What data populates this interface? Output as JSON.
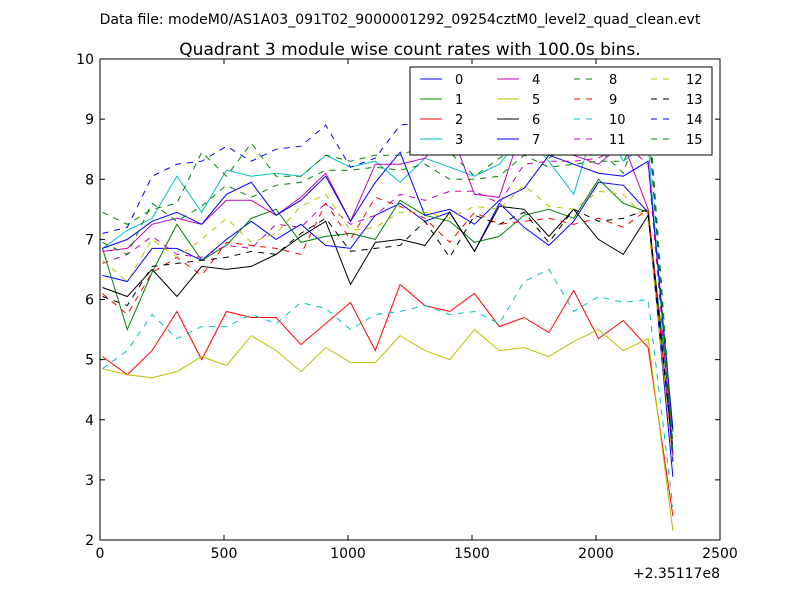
{
  "chart_data": {
    "type": "line",
    "suptitle": "Data file: modeM0/AS1A03_091T02_9000001292_09254cztM0_level2_quad_clean.evt",
    "title": "Quadrant 3 module wise count rates with 100.0s bins.",
    "xlabel": "",
    "ylabel": "",
    "offset_label": "+2.35117e8",
    "xlim": [
      0,
      2500
    ],
    "ylim": [
      2,
      10
    ],
    "xticks": [
      0,
      500,
      1000,
      1500,
      2000,
      2500
    ],
    "yticks": [
      2,
      3,
      4,
      5,
      6,
      7,
      8,
      9,
      10
    ],
    "grid": false,
    "legend_position": "top-right",
    "x": [
      10,
      110,
      210,
      310,
      410,
      510,
      610,
      710,
      810,
      910,
      1010,
      1110,
      1210,
      1310,
      1410,
      1510,
      1610,
      1710,
      1810,
      1910,
      2010,
      2110,
      2210,
      2310
    ],
    "series": [
      {
        "name": "0",
        "color": "#0000ff",
        "dash": "solid",
        "values": [
          6.4,
          6.3,
          6.85,
          6.85,
          6.65,
          7.0,
          7.3,
          7.0,
          7.25,
          6.9,
          6.85,
          7.4,
          7.6,
          7.3,
          7.45,
          6.8,
          7.6,
          7.2,
          6.9,
          7.3,
          7.95,
          7.9,
          7.45,
          3.05
        ]
      },
      {
        "name": "1",
        "color": "#008000",
        "dash": "solid",
        "values": [
          6.85,
          5.5,
          6.45,
          7.25,
          6.65,
          6.9,
          7.35,
          7.5,
          6.95,
          7.05,
          7.1,
          7.0,
          7.65,
          7.4,
          7.3,
          6.95,
          7.05,
          7.4,
          7.5,
          7.35,
          8.0,
          7.6,
          7.45,
          3.8
        ]
      },
      {
        "name": "2",
        "color": "#ff0000",
        "dash": "solid",
        "values": [
          5.05,
          4.75,
          5.15,
          5.8,
          5.0,
          5.8,
          5.7,
          5.7,
          5.25,
          5.6,
          5.95,
          5.15,
          6.25,
          5.9,
          5.8,
          6.1,
          5.55,
          5.7,
          5.45,
          6.15,
          5.35,
          5.65,
          5.2,
          2.4
        ]
      },
      {
        "name": "3",
        "color": "#00bfbf",
        "dash": "solid",
        "values": [
          6.85,
          7.15,
          7.35,
          8.05,
          7.45,
          8.15,
          8.05,
          8.1,
          8.05,
          8.4,
          8.2,
          8.3,
          7.95,
          8.35,
          8.2,
          8.05,
          8.25,
          8.75,
          8.3,
          7.75,
          9.1,
          8.3,
          8.6,
          3.4
        ]
      },
      {
        "name": "4",
        "color": "#bf00bf",
        "dash": "solid",
        "values": [
          6.8,
          6.85,
          7.25,
          7.35,
          7.25,
          7.65,
          7.65,
          7.4,
          7.7,
          8.1,
          7.3,
          8.25,
          8.25,
          8.35,
          8.85,
          7.75,
          7.7,
          8.95,
          8.45,
          8.4,
          8.25,
          8.6,
          7.5,
          3.4
        ]
      },
      {
        "name": "5",
        "color": "#bfbf00",
        "dash": "solid",
        "values": [
          4.85,
          4.75,
          4.7,
          4.8,
          5.05,
          4.9,
          5.4,
          5.15,
          4.8,
          5.2,
          4.95,
          4.95,
          5.4,
          5.15,
          5.0,
          5.5,
          5.15,
          5.2,
          5.05,
          5.3,
          5.5,
          5.15,
          5.35,
          2.15
        ]
      },
      {
        "name": "6",
        "color": "#000000",
        "dash": "solid",
        "values": [
          6.2,
          6.05,
          6.5,
          6.05,
          6.55,
          6.5,
          6.55,
          6.75,
          7.05,
          7.3,
          6.25,
          6.95,
          7.0,
          6.9,
          7.45,
          6.8,
          7.55,
          7.5,
          7.05,
          7.5,
          7.0,
          6.75,
          7.4,
          3.45
        ]
      },
      {
        "name": "7",
        "color": "#0000ff",
        "dash": "solid",
        "values": [
          6.85,
          7.0,
          7.3,
          7.45,
          7.25,
          7.75,
          7.95,
          7.4,
          7.65,
          8.05,
          7.3,
          7.95,
          8.45,
          7.4,
          7.5,
          7.25,
          7.65,
          7.85,
          8.4,
          8.25,
          8.1,
          8.05,
          8.3,
          3.85
        ]
      },
      {
        "name": "8",
        "color": "#008000",
        "dash": "dashed",
        "values": [
          7.45,
          7.25,
          7.5,
          7.6,
          8.45,
          8.05,
          8.6,
          8.05,
          8.05,
          8.4,
          8.3,
          8.4,
          8.4,
          8.55,
          8.45,
          8.05,
          8.35,
          8.6,
          8.35,
          8.6,
          8.5,
          8.1,
          9.35,
          3.6
        ]
      },
      {
        "name": "9",
        "color": "#ff0000",
        "dash": "dashed",
        "values": [
          6.1,
          5.75,
          6.45,
          6.7,
          6.4,
          6.95,
          6.9,
          6.85,
          6.75,
          7.6,
          7.0,
          7.7,
          7.55,
          7.35,
          6.95,
          7.45,
          7.25,
          7.3,
          7.35,
          7.25,
          7.35,
          7.2,
          7.5,
          3.35
        ]
      },
      {
        "name": "10",
        "color": "#00bfbf",
        "dash": "dashed",
        "values": [
          4.85,
          5.15,
          5.75,
          5.35,
          5.55,
          5.55,
          5.75,
          5.6,
          5.95,
          5.85,
          5.5,
          5.75,
          5.8,
          5.9,
          5.75,
          5.8,
          5.6,
          6.3,
          6.5,
          5.8,
          6.05,
          5.95,
          6.0,
          2.55
        ]
      },
      {
        "name": "11",
        "color": "#bf00bf",
        "dash": "dashed",
        "values": [
          6.6,
          6.75,
          7.05,
          6.75,
          6.7,
          6.9,
          6.85,
          7.25,
          7.2,
          7.6,
          7.25,
          7.4,
          7.75,
          7.65,
          7.8,
          7.8,
          7.6,
          8.25,
          8.3,
          8.3,
          8.35,
          8.6,
          8.25,
          3.5
        ]
      },
      {
        "name": "12",
        "color": "#bfbf00",
        "dash": "dashed",
        "values": [
          6.65,
          6.3,
          7.0,
          6.7,
          7.0,
          7.35,
          6.95,
          7.1,
          7.55,
          7.75,
          7.15,
          7.2,
          7.45,
          7.45,
          7.35,
          7.55,
          7.5,
          7.9,
          7.55,
          7.5,
          7.8,
          7.75,
          7.3,
          3.3
        ]
      },
      {
        "name": "13",
        "color": "#000000",
        "dash": "dashed",
        "values": [
          6.05,
          5.9,
          6.55,
          6.6,
          6.65,
          6.7,
          6.8,
          6.75,
          7.1,
          7.35,
          6.8,
          6.85,
          6.9,
          7.3,
          6.7,
          7.4,
          7.25,
          7.45,
          6.95,
          7.5,
          7.3,
          7.35,
          7.5,
          3.5
        ]
      },
      {
        "name": "14",
        "color": "#0000ff",
        "dash": "dashed",
        "values": [
          7.1,
          7.2,
          8.05,
          8.25,
          8.3,
          8.55,
          8.3,
          8.5,
          8.55,
          8.9,
          8.2,
          8.35,
          8.9,
          8.95,
          9.05,
          8.95,
          9.0,
          8.95,
          8.9,
          9.05,
          9.2,
          9.1,
          9.15,
          3.3
        ]
      },
      {
        "name": "15",
        "color": "#008000",
        "dash": "dashed",
        "values": [
          6.95,
          6.75,
          7.6,
          7.3,
          7.55,
          7.9,
          7.7,
          7.9,
          7.95,
          8.15,
          8.15,
          8.2,
          8.15,
          8.25,
          8.0,
          8.0,
          8.05,
          8.4,
          8.2,
          8.25,
          8.3,
          8.3,
          9.0,
          3.45
        ]
      }
    ]
  }
}
